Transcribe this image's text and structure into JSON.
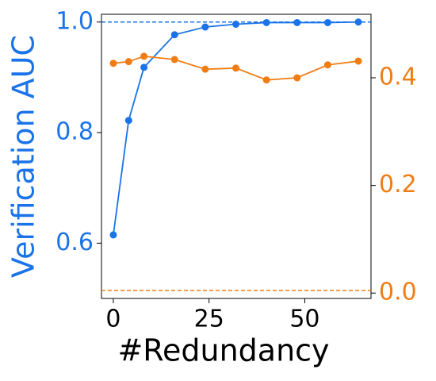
{
  "chart_data": {
    "type": "line",
    "x_label": "#Redundancy",
    "y_label": "Verification AUC",
    "x": [
      0,
      4,
      8,
      16,
      24,
      32,
      40,
      48,
      56,
      64
    ],
    "xlim": [
      -3.1,
      67.3
    ],
    "xticks": [
      0,
      25,
      50
    ],
    "ylim": [
      0.5,
      1.014
    ],
    "yticks": [
      0.6,
      0.8,
      {
        "value": 1.0,
        "label": "1.0"
      }
    ],
    "y2lim": [
      -0.01,
      0.518
    ],
    "y2ticks": [
      {
        "value": 0.0,
        "label": "0.0"
      },
      0.2,
      0.4
    ],
    "y_label_color": "#1a73e8",
    "y2_color": "#f07d14",
    "series": [
      {
        "color": "#1a73e8",
        "axis": "y",
        "baseline": 1.0,
        "values": [
          0.615,
          0.822,
          0.918,
          0.977,
          0.991,
          0.996,
          0.999,
          0.999,
          0.999,
          1.0
        ]
      },
      {
        "color": "#f07d14",
        "axis": "y2",
        "baseline": 0.005,
        "values": [
          0.427,
          0.43,
          0.44,
          0.434,
          0.416,
          0.418,
          0.396,
          0.4,
          0.424,
          0.431
        ]
      }
    ]
  }
}
